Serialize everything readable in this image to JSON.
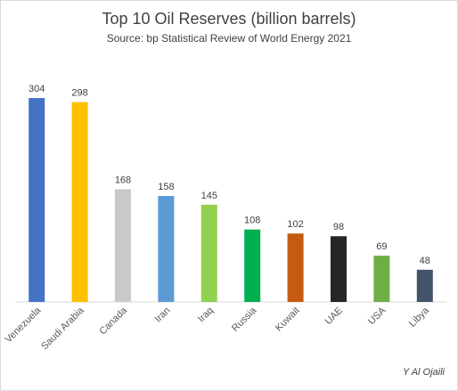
{
  "chart_data": {
    "type": "bar",
    "title": "Top 10 Oil Reserves (billion barrels)",
    "subtitle": "Source: bp Statistical Review of World Energy 2021",
    "categories": [
      "Venezuela",
      "Saudi Arabia",
      "Canada",
      "Iran",
      "Iraq",
      "Russia",
      "Kuwait",
      "UAE",
      "USA",
      "Libya"
    ],
    "values": [
      304,
      298,
      168,
      158,
      145,
      108,
      102,
      98,
      69,
      48
    ],
    "colors": [
      "#4472c4",
      "#ffc000",
      "#c9c9c9",
      "#5b9bd5",
      "#92d050",
      "#00b050",
      "#c55a11",
      "#262626",
      "#70ad47",
      "#44546a"
    ],
    "ylim": [
      0,
      340
    ],
    "xlabel": "",
    "ylabel": "",
    "grid": false,
    "legend": "none",
    "data_labels": true
  },
  "credit": "Y Al Ojaili"
}
